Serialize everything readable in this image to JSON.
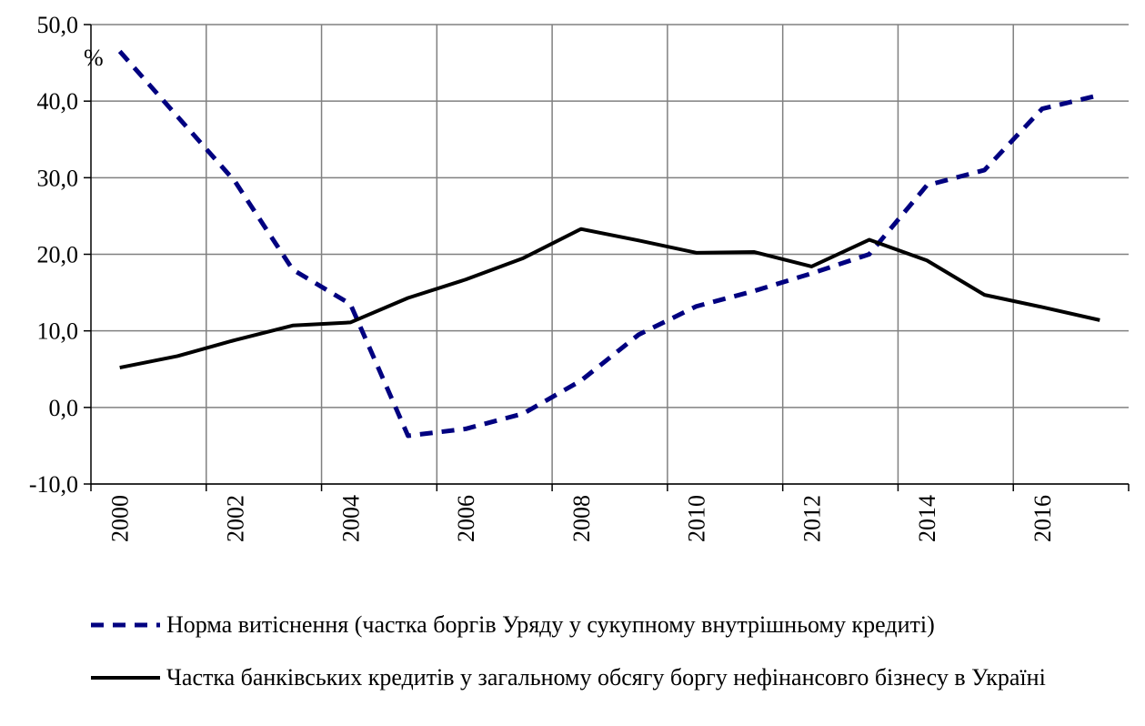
{
  "chart_data": {
    "type": "line",
    "y_unit_label": "%",
    "categories": [
      "2000",
      null,
      "2002",
      null,
      "2004",
      null,
      "2006",
      null,
      "2008",
      null,
      "2010",
      null,
      "2012",
      null,
      "2014",
      null,
      "2016",
      null
    ],
    "series": [
      {
        "name": "Норма витіснення (частка боргів Уряду у сукупному внутрішньому кредиті)",
        "color": "#000080",
        "dashed": true,
        "values": [
          46.5,
          38.0,
          29.5,
          18.0,
          13.5,
          -3.7,
          -2.8,
          -0.8,
          3.5,
          9.5,
          13.2,
          15.2,
          17.5,
          20.0,
          29.0,
          31.0,
          39.0,
          40.8
        ]
      },
      {
        "name": "Частка банківських кредитів у загальному обсягу боргу нефінансовго бізнесу в Україні",
        "color": "#000000",
        "dashed": false,
        "values": [
          5.2,
          6.7,
          8.8,
          10.7,
          11.1,
          14.3,
          16.7,
          19.5,
          23.3,
          21.8,
          20.2,
          20.3,
          18.4,
          21.9,
          19.2,
          14.7,
          13.1,
          11.4
        ]
      }
    ],
    "ylim": [
      -10,
      50
    ],
    "yticks": [
      {
        "value": -10,
        "label": "-10,0"
      },
      {
        "value": 0,
        "label": "0,0"
      },
      {
        "value": 10,
        "label": "10,0"
      },
      {
        "value": 20,
        "label": "20,0"
      },
      {
        "value": 30,
        "label": "30,0"
      },
      {
        "value": 40,
        "label": "40,0"
      },
      {
        "value": 50,
        "label": "50,0"
      }
    ],
    "grid": true
  }
}
